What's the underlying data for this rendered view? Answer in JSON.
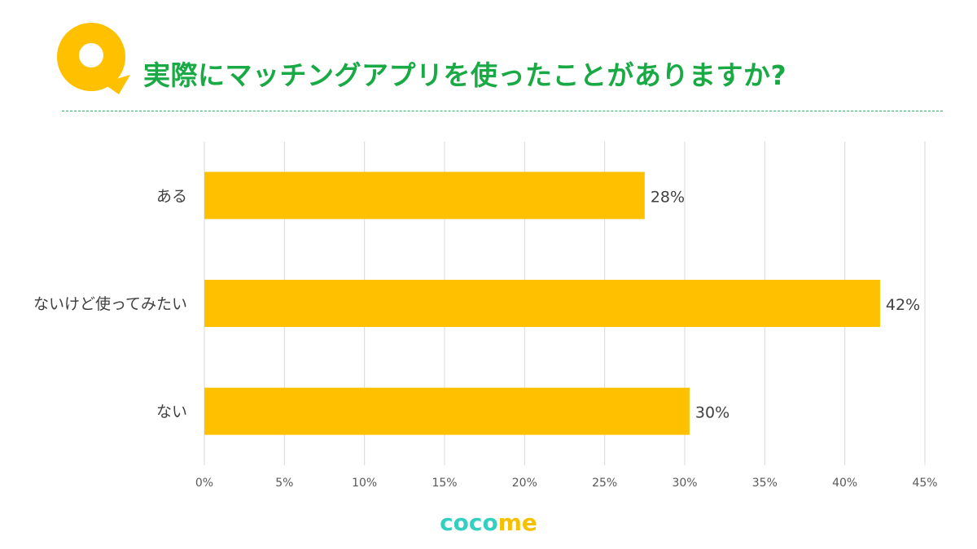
{
  "header": {
    "title": "実際にマッチングアプリを使ったことがありますか?",
    "logo_icon": "q-bubble-icon"
  },
  "colors": {
    "accent_yellow": "#FFC000",
    "title_green": "#1AAA45",
    "brand_teal": "#33CFC0"
  },
  "chart_data": {
    "type": "bar",
    "orientation": "horizontal",
    "title": "",
    "xlabel": "",
    "ylabel": "",
    "categories": [
      "ある",
      "ないけど使ってみたい",
      "ない"
    ],
    "values": [
      27.5,
      42.2,
      30.3
    ],
    "data_labels": [
      "28%",
      "42%",
      "30%"
    ],
    "xlim": [
      0,
      45
    ],
    "xticks": [
      "0%",
      "5%",
      "10%",
      "15%",
      "20%",
      "25%",
      "30%",
      "35%",
      "40%",
      "45%"
    ],
    "grid": "vertical",
    "bar_color": "#FFC000"
  },
  "footer": {
    "brand_part1": "co",
    "brand_part2": "co",
    "brand_part3": "me"
  }
}
